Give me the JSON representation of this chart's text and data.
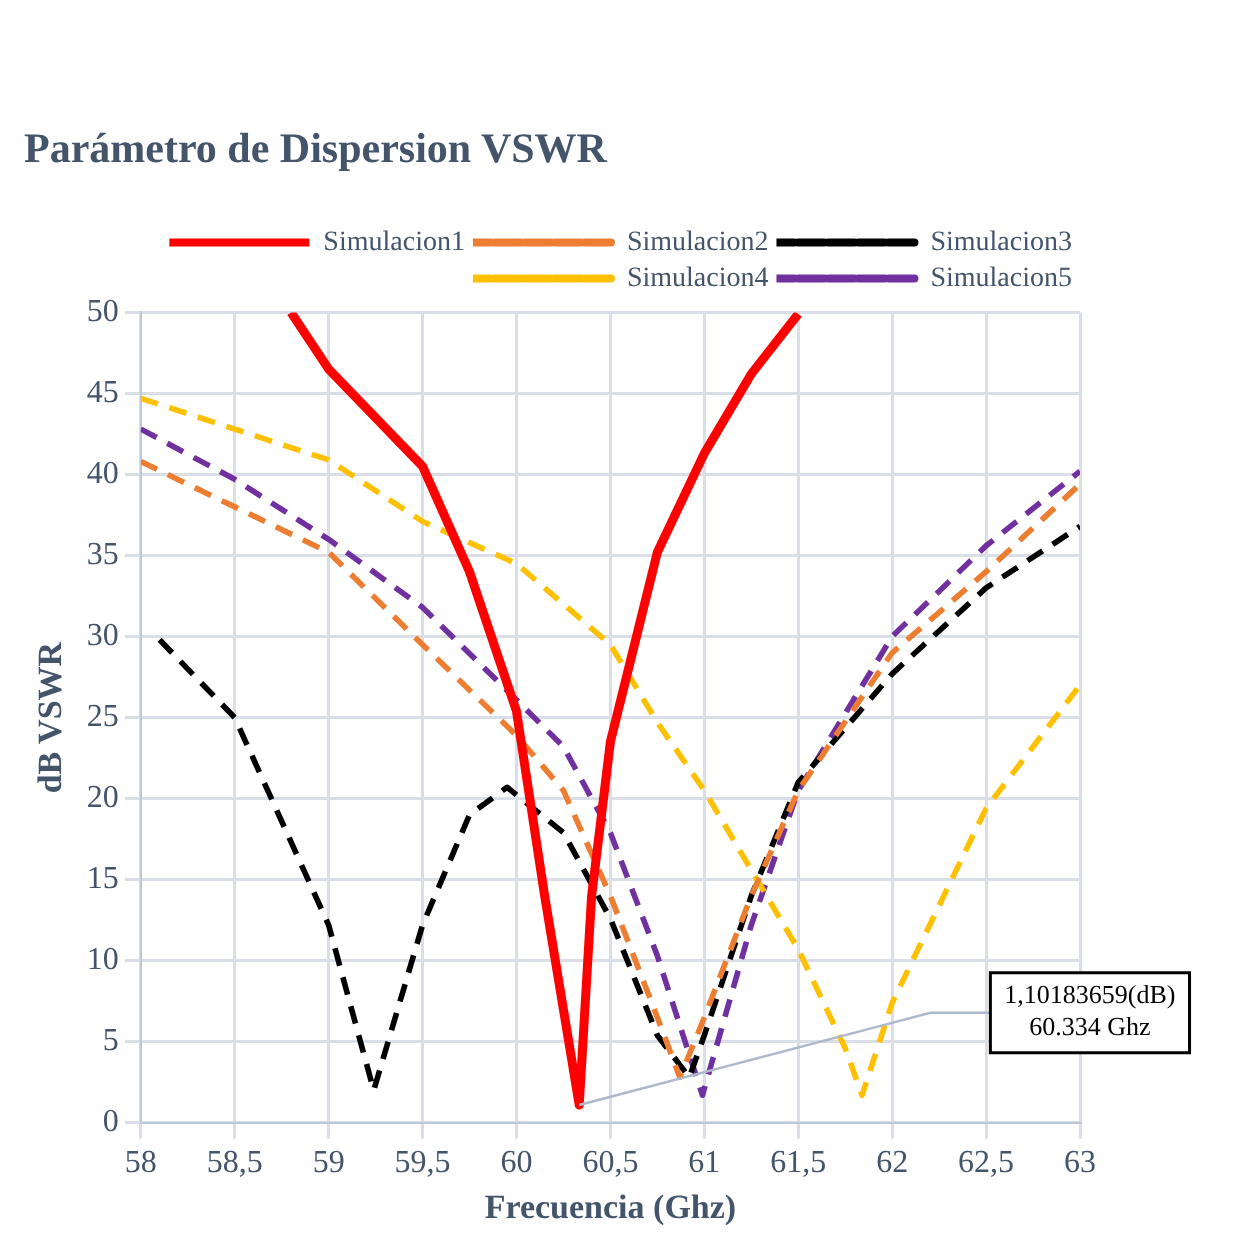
{
  "chart_data": {
    "type": "line",
    "title": "Parámetro de Dispersion VSWR",
    "xlabel": "Frecuencia (Ghz)",
    "ylabel": "dB VSWR",
    "xlim": [
      58,
      63
    ],
    "xticks": [
      58,
      {
        "value": 58.5,
        "label": "58,5"
      },
      59,
      {
        "value": 59.5,
        "label": "59,5"
      },
      60,
      {
        "value": 60.5,
        "label": "60,5"
      },
      61,
      {
        "value": 61.5,
        "label": "61,5"
      },
      62,
      {
        "value": 62.5,
        "label": "62,5"
      },
      63
    ],
    "ylim": [
      0,
      50
    ],
    "yticks": [
      0,
      5,
      10,
      15,
      20,
      25,
      30,
      35,
      40,
      45,
      50
    ],
    "grid": true,
    "legend": "top right",
    "marker": "none",
    "series": [
      {
        "name": "Simulacion1",
        "color": "#ff0000",
        "line_style": "solid",
        "x": [
          58.8,
          59,
          59.5,
          59.75,
          60,
          60.15,
          60.334,
          60.4,
          60.5,
          60.75,
          61,
          61.25,
          61.5
        ],
        "values": [
          50,
          46.5,
          40.5,
          34,
          25.4,
          14,
          1.1,
          14,
          23.5,
          35.2,
          41.3,
          46.2,
          49.9
        ]
      },
      {
        "name": "Simulacion2",
        "color": "#ed7d31",
        "line_style": "dashed",
        "x": [
          58,
          58.5,
          59,
          59.5,
          60,
          60.25,
          60.5,
          60.75,
          60.87,
          61,
          61.25,
          61.5,
          62,
          62.5,
          63
        ],
        "values": [
          40.8,
          38,
          35.2,
          29.5,
          23.9,
          20.5,
          14,
          6.5,
          2.8,
          6.5,
          14,
          20.5,
          29,
          34,
          39.4
        ]
      },
      {
        "name": "Simulacion3",
        "color": "#000000",
        "line_style": "dashed",
        "x": [
          58.1,
          58.5,
          59,
          59.24,
          59.5,
          59.75,
          59.95,
          60.25,
          60.5,
          60.75,
          60.92,
          61,
          61.25,
          61.5,
          62,
          62.5,
          63
        ],
        "values": [
          29.8,
          25,
          12.2,
          2,
          12.2,
          19,
          20.7,
          17.9,
          12.6,
          5.4,
          2.8,
          5.4,
          14,
          21,
          27.7,
          33,
          36.8
        ]
      },
      {
        "name": "Simulacion4",
        "color": "#ffc000",
        "line_style": "dashed",
        "x": [
          58,
          58.5,
          59,
          59.5,
          60,
          60.5,
          60.75,
          61,
          61.25,
          61.5,
          61.75,
          61.84,
          62,
          62.5,
          63
        ],
        "values": [
          44.7,
          42.8,
          40.9,
          37.1,
          34.5,
          29.5,
          24.7,
          20.5,
          15.6,
          10.7,
          4.6,
          1.7,
          7.4,
          19.4,
          27
        ]
      },
      {
        "name": "Simulacion5",
        "color": "#7030a0",
        "line_style": "dashed",
        "x": [
          58,
          58.5,
          59,
          59.5,
          60,
          60.25,
          60.5,
          60.75,
          60.99,
          61.25,
          61.5,
          62,
          62.5,
          63
        ],
        "values": [
          42.8,
          39.7,
          36,
          31.8,
          26.1,
          23.2,
          17.9,
          10.3,
          1.7,
          12.2,
          20.5,
          30,
          35.6,
          40.2
        ]
      }
    ],
    "annotations": [
      {
        "text": "1,10183659(dB)\n60.334 Ghz",
        "x": 60.334,
        "y": 1.1
      }
    ]
  }
}
